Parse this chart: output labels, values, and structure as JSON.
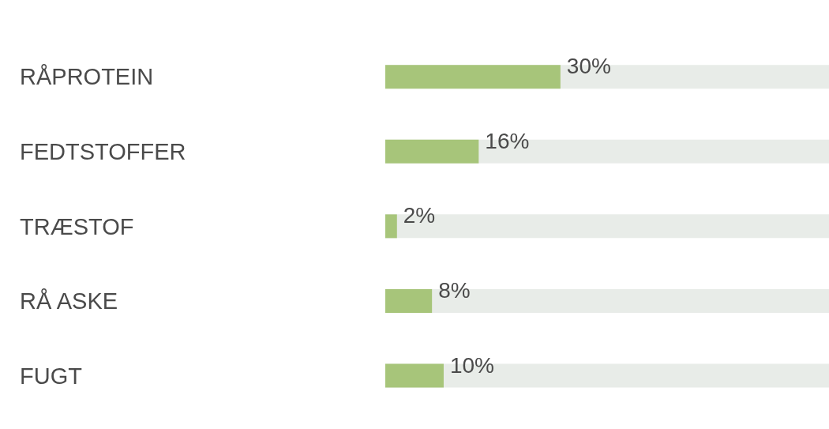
{
  "chart_data": {
    "type": "bar",
    "orientation": "horizontal",
    "categories": [
      "RÅPROTEIN",
      "FEDTSTOFFER",
      "TRÆSTOF",
      "RÅ ASKE",
      "FUGT"
    ],
    "values": [
      30,
      16,
      2,
      8,
      10
    ],
    "value_labels": [
      "30%",
      "16%",
      "2%",
      "8%",
      "10%"
    ],
    "color": "#a7c57a",
    "xlim": [
      0,
      76
    ],
    "tick_labels": "y",
    "grid": false
  }
}
